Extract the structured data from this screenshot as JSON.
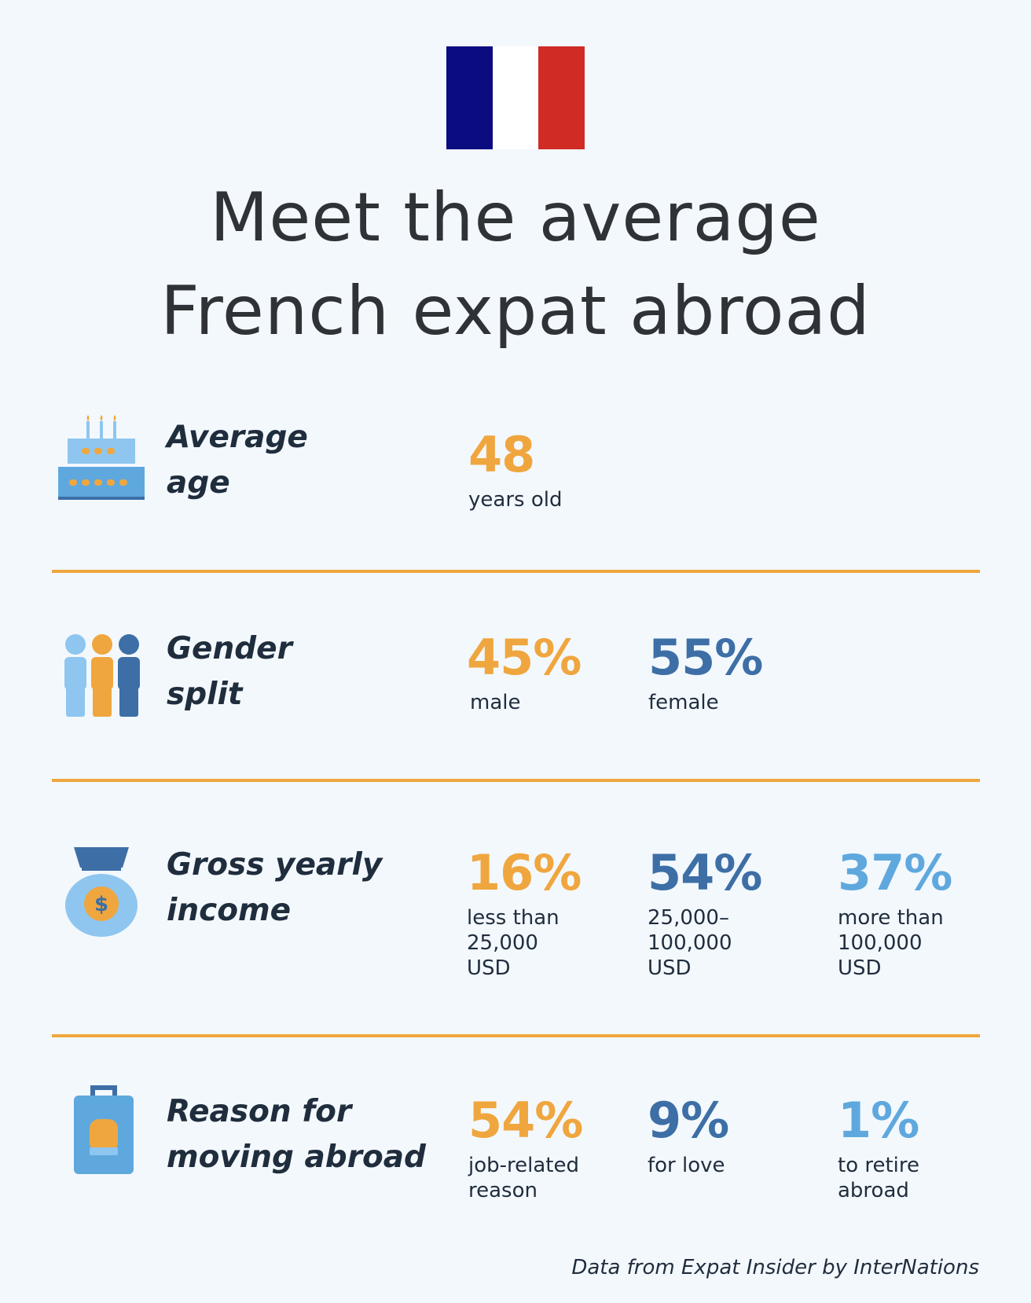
{
  "flag": {
    "colors": [
      "#0b0c80",
      "#ffffff",
      "#d12b26"
    ]
  },
  "title": {
    "line1": "Meet the average",
    "line2": "French expat abroad"
  },
  "colors": {
    "orange": "#f0a63e",
    "dark_blue": "#3d6fa6",
    "light_blue": "#5fa8de",
    "divider": "#f0a63e"
  },
  "rows": {
    "age": {
      "icon": "birthday-cake-icon",
      "label_line1": "Average",
      "label_line2": "age",
      "stats": [
        {
          "value": "48",
          "caption": "years old"
        }
      ]
    },
    "gender": {
      "icon": "people-icon",
      "label_line1": "Gender",
      "label_line2": "split",
      "stats": [
        {
          "value": "45%",
          "caption": "male"
        },
        {
          "value": "55%",
          "caption": "female"
        }
      ]
    },
    "income": {
      "icon": "money-bag-icon",
      "label_line1": "Gross yearly",
      "label_line2": "income",
      "stats": [
        {
          "value": "16%",
          "caption": "less than\n25,000\nUSD"
        },
        {
          "value": "54%",
          "caption": "25,000–\n100,000\nUSD"
        },
        {
          "value": "37%",
          "caption": "more than\n100,000\nUSD"
        }
      ]
    },
    "reason": {
      "icon": "suitcase-icon",
      "label_line1": "Reason for",
      "label_line2": "moving abroad",
      "stats": [
        {
          "value": "54%",
          "caption": "job-related\nreason"
        },
        {
          "value": "9%",
          "caption": "for love"
        },
        {
          "value": "1%",
          "caption": "to retire\nabroad"
        }
      ]
    }
  },
  "source": "Data from Expat Insider by InterNations"
}
